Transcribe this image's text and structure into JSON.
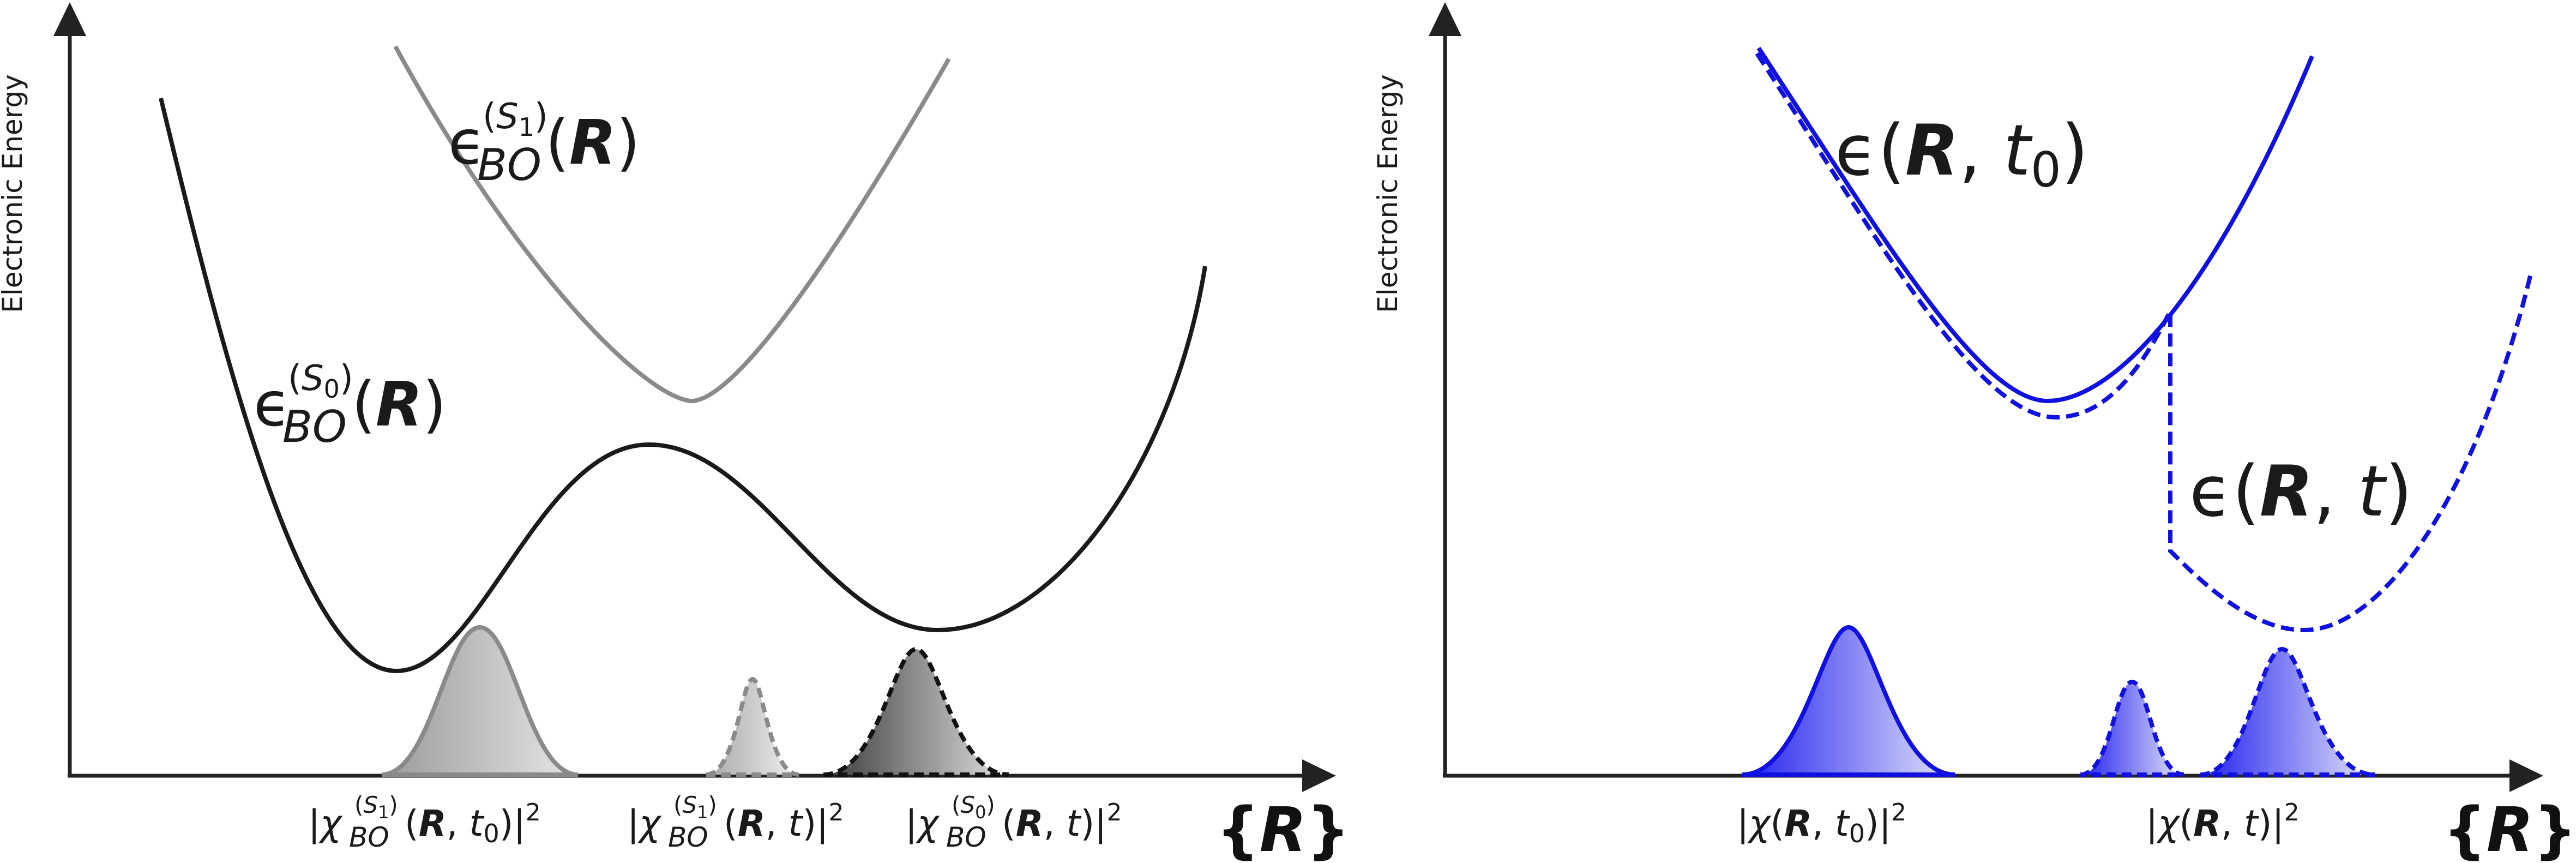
{
  "left_panel": {
    "y_axis_label": "Electronic Energy",
    "x_axis_label": "{R}",
    "curve_s1": {
      "eps": "ϵ",
      "sub": "BO",
      "sup": "(S",
      "sup_index": "1",
      "sup_close": ")",
      "args": "(R)",
      "color": "#8a8a8a"
    },
    "curve_s0": {
      "eps": "ϵ",
      "sub": "BO",
      "sup": "(S",
      "sup_index": "0",
      "sup_close": ")",
      "args": "(R)",
      "color": "#1a1a1a"
    },
    "wavepackets": [
      {
        "label": "|χ_BO^(S1)(R, t0)|²",
        "color": "#8a8a8a"
      },
      {
        "label": "|χ_BO^(S1)(R, t)|²",
        "color": "#8a8a8a"
      },
      {
        "label": "|χ_BO^(S0)(R, t)|²",
        "color": "#1a1a1a"
      }
    ]
  },
  "right_panel": {
    "y_axis_label": "Electronic Energy",
    "x_axis_label": "{R}",
    "curve_t0": {
      "label": "ϵ(R, t0)",
      "color": "#1010e0"
    },
    "curve_t": {
      "label": "ϵ(R, t)",
      "color": "#1010e0"
    },
    "wavepackets": [
      {
        "label": "|χ(R, t0)|²",
        "color": "#1010e0"
      },
      {
        "label": "|χ(R, t)|²",
        "color": "#1010e0"
      }
    ]
  }
}
